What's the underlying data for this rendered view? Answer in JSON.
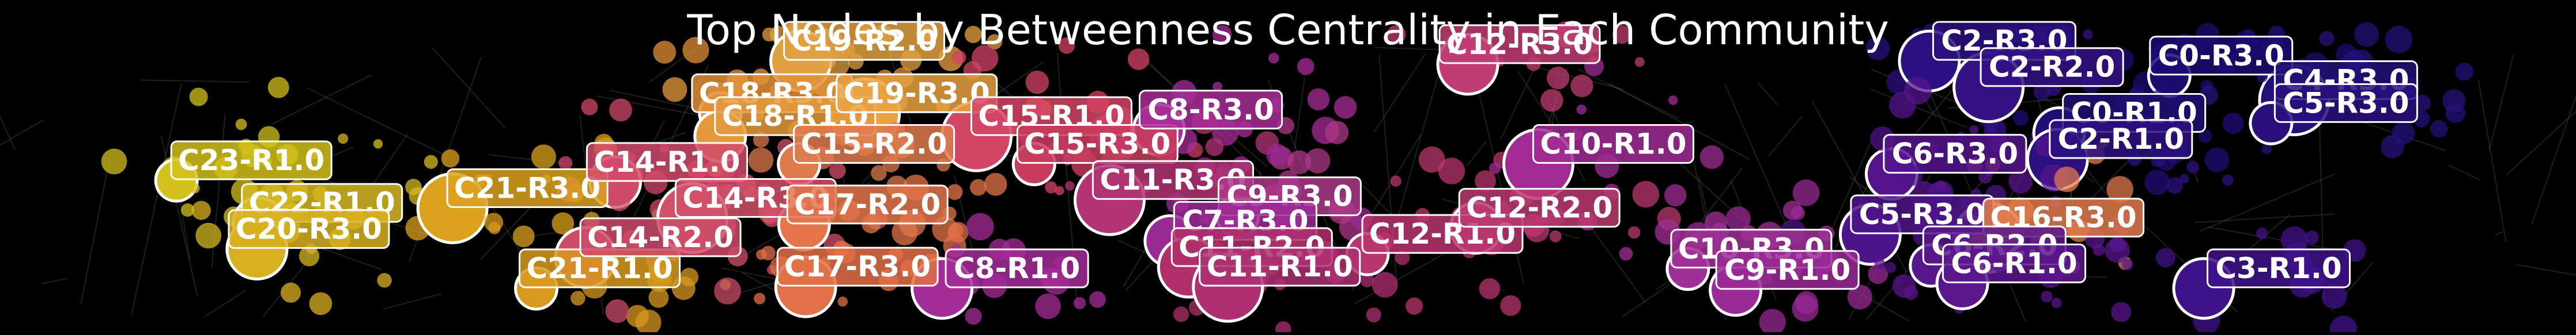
{
  "chart_data": {
    "type": "scatter",
    "title": "Top Nodes by Betweenness Centrality in Each Community",
    "background": "#000000",
    "xlim": [
      0,
      1568
    ],
    "ylim": [
      0,
      203
    ],
    "grid": false,
    "legend": "none",
    "labels": [
      {
        "text": "C23-R1.0",
        "x": 153,
        "y": 98,
        "color": "#d4c21c"
      },
      {
        "text": "C22-R1.0",
        "x": 196,
        "y": 124,
        "color": "#d6b822"
      },
      {
        "text": "C20-R3.0",
        "x": 188,
        "y": 140,
        "color": "#d8b020"
      },
      {
        "text": "C21-R3.0",
        "x": 321,
        "y": 115,
        "color": "#dca21e"
      },
      {
        "text": "C21-R1.0",
        "x": 365,
        "y": 164,
        "color": "#d89a20"
      },
      {
        "text": "C14-R1.0",
        "x": 406,
        "y": 99,
        "color": "#d24a6a"
      },
      {
        "text": "C14-R2.0",
        "x": 402,
        "y": 145,
        "color": "#cc4c68"
      },
      {
        "text": "C14-R3.0",
        "x": 460,
        "y": 121,
        "color": "#d25068"
      },
      {
        "text": "C18-R3.0",
        "x": 470,
        "y": 57,
        "color": "#e29038"
      },
      {
        "text": "C18-R1.0",
        "x": 484,
        "y": 71,
        "color": "#e49a3c"
      },
      {
        "text": "C19-R2.0",
        "x": 526,
        "y": 25,
        "color": "#e0a040"
      },
      {
        "text": "C19-R3.0",
        "x": 558,
        "y": 57,
        "color": "#e8a242"
      },
      {
        "text": "C15-R2.0",
        "x": 532,
        "y": 88,
        "color": "#de7a4c"
      },
      {
        "text": "C17-R2.0",
        "x": 528,
        "y": 125,
        "color": "#e4764a"
      },
      {
        "text": "C17-R3.0",
        "x": 522,
        "y": 163,
        "color": "#e27048"
      },
      {
        "text": "C15-R1.0",
        "x": 640,
        "y": 71,
        "color": "#d44464"
      },
      {
        "text": "C15-R3.0",
        "x": 668,
        "y": 88,
        "color": "#c83c5e"
      },
      {
        "text": "C8-R3.0",
        "x": 737,
        "y": 67,
        "color": "#a62e96"
      },
      {
        "text": "C8-R1.0",
        "x": 619,
        "y": 164,
        "color": "#a32c98"
      },
      {
        "text": "C11-R3.0",
        "x": 714,
        "y": 110,
        "color": "#b23474"
      },
      {
        "text": "C9-R3.0",
        "x": 785,
        "y": 120,
        "color": "#ae3888"
      },
      {
        "text": "C7-R3.0",
        "x": 758,
        "y": 135,
        "color": "#9a2a96"
      },
      {
        "text": "C11-R2.0",
        "x": 762,
        "y": 151,
        "color": "#b0306c"
      },
      {
        "text": "C11-R1.0",
        "x": 779,
        "y": 163,
        "color": "#ac3072"
      },
      {
        "text": "C12-R1.0",
        "x": 878,
        "y": 143,
        "color": "#b8356e"
      },
      {
        "text": "C12-R2.0",
        "x": 937,
        "y": 127,
        "color": "#ba3a6e"
      },
      {
        "text": "C12-R3.0",
        "x": 925,
        "y": 27,
        "color": "#c03c72"
      },
      {
        "text": "C10-R1.0",
        "x": 982,
        "y": 88,
        "color": "#a02c94"
      },
      {
        "text": "C10-R3.0",
        "x": 1066,
        "y": 152,
        "color": "#a03096"
      },
      {
        "text": "C9-R1.0",
        "x": 1088,
        "y": 165,
        "color": "#9a2a96"
      },
      {
        "text": "C2-R3.0",
        "x": 1220,
        "y": 25,
        "color": "#2a1080"
      },
      {
        "text": "C2-R2.0",
        "x": 1249,
        "y": 41,
        "color": "#341284"
      },
      {
        "text": "C0-R3.0",
        "x": 1352,
        "y": 34,
        "color": "#1c0c72"
      },
      {
        "text": "C0-R1.0",
        "x": 1299,
        "y": 69,
        "color": "#200e76"
      },
      {
        "text": "C2-R1.0",
        "x": 1291,
        "y": 85,
        "color": "#2c1080"
      },
      {
        "text": "C4-R3.0",
        "x": 1428,
        "y": 49,
        "color": "#221078"
      },
      {
        "text": "C5-R3.0",
        "x": 1428,
        "y": 63,
        "color": "#28107c"
      },
      {
        "text": "C6-R3.0",
        "x": 1190,
        "y": 94,
        "color": "#54148c"
      },
      {
        "text": "C5-R3.0",
        "x": 1170,
        "y": 131,
        "color": "#4c1488"
      },
      {
        "text": "C16-R3.0",
        "x": 1256,
        "y": 133,
        "color": "#e07a4c"
      },
      {
        "text": "C6-R2.0",
        "x": 1214,
        "y": 150,
        "color": "#58168c"
      },
      {
        "text": "C6-R1.0",
        "x": 1226,
        "y": 161,
        "color": "#5a168c"
      },
      {
        "text": "C3-R1.0",
        "x": 1387,
        "y": 164,
        "color": "#40128a"
      }
    ]
  }
}
